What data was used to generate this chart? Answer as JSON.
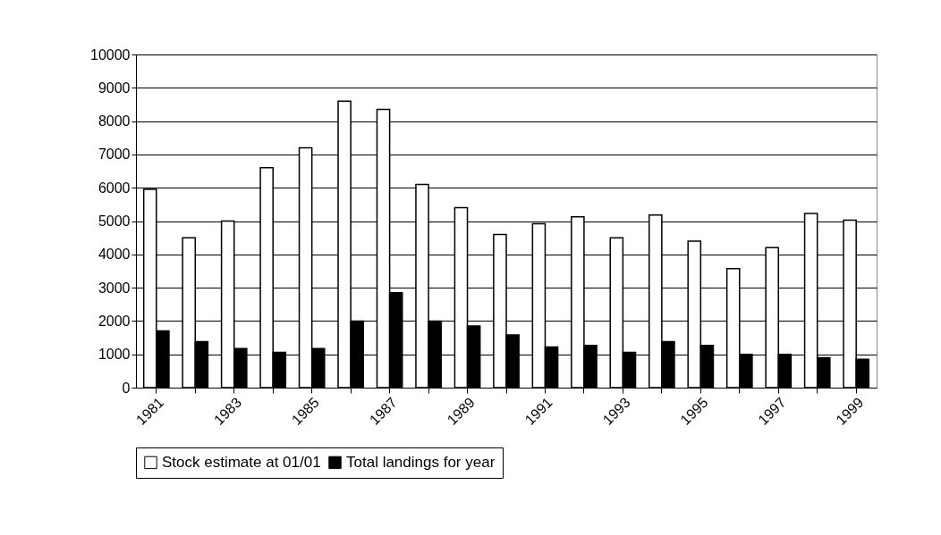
{
  "chart_data": {
    "type": "bar",
    "categories": [
      "1981",
      null,
      "1983",
      null,
      "1985",
      null,
      "1987",
      null,
      "1989",
      null,
      "1991",
      null,
      "1993",
      null,
      "1995",
      null,
      "1997",
      null,
      "1999"
    ],
    "series": [
      {
        "name": "Stock estimate at 01/01",
        "color": "#ffffff",
        "values": [
          5950,
          4500,
          5000,
          6600,
          7200,
          8600,
          8350,
          6100,
          5400,
          4600,
          4920,
          5130,
          4500,
          5180,
          4400,
          3570,
          4200,
          5230,
          5030
        ]
      },
      {
        "name": "Total landings for year",
        "color": "#000000",
        "values": [
          1700,
          1380,
          1170,
          1060,
          1170,
          2000,
          2850,
          2000,
          1850,
          1580,
          1220,
          1270,
          1060,
          1380,
          1270,
          1000,
          1000,
          900,
          850
        ]
      }
    ],
    "ylim": [
      0,
      10000
    ],
    "yticks": [
      0,
      1000,
      2000,
      3000,
      4000,
      5000,
      6000,
      7000,
      8000,
      9000,
      10000
    ],
    "grid": "y",
    "legend": "bottom"
  }
}
